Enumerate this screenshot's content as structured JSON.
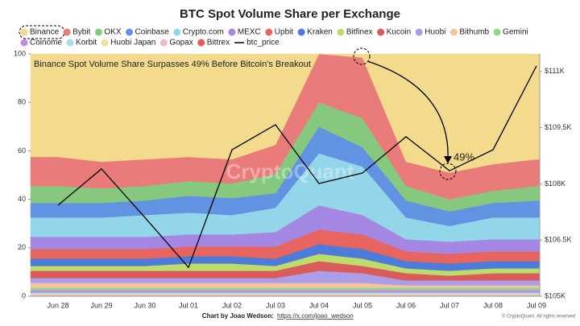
{
  "chart_data": {
    "type": "area",
    "stacked": true,
    "title": "BTC Spot Volume Share per Exchange",
    "annotation": "Binance Spot Volume Share Surpasses 49% Before Bitcoin's Breakout",
    "callout": "49%",
    "watermark": "CryptoQuant",
    "credit_prefix": "Chart by Joao Wedson:",
    "credit_link": "https://x.com/joao_wedson",
    "copyright": "© CryptoQuant. All rights reserved",
    "categories": [
      "Jun 28",
      "Jun 29",
      "Jun 30",
      "Jul 01",
      "Jul 02",
      "Jul 03",
      "Jul 04",
      "Jul 05",
      "Jul 06",
      "Jul 07",
      "Jul 08",
      "Jul 09"
    ],
    "ylim": [
      0,
      100
    ],
    "yticks": [
      0,
      20,
      40,
      60,
      80,
      100
    ],
    "y2lim": [
      105000,
      111470
    ],
    "y2ticks": [
      {
        "value": 105000,
        "label": "$105K"
      },
      {
        "value": 106500,
        "label": "$106.5K"
      },
      {
        "value": 108000,
        "label": "$108K"
      },
      {
        "value": 109500,
        "label": "$109.5K"
      },
      {
        "value": 111000,
        "label": "$111K"
      }
    ],
    "series": [
      {
        "name": "Binance",
        "color": "#f3da8c",
        "values": [
          42.5,
          44.5,
          43.5,
          42.5,
          43.5,
          37.5,
          0,
          1.5,
          44.5,
          49,
          45.5,
          43.5
        ]
      },
      {
        "name": "Bybit",
        "color": "#e97c7b",
        "values": [
          12,
          11,
          11,
          10,
          10,
          12,
          20,
          25,
          10,
          11,
          11,
          11
        ]
      },
      {
        "name": "OKX",
        "color": "#86c97e",
        "values": [
          7,
          6,
          6,
          6,
          6,
          8,
          10,
          12,
          6,
          5,
          5,
          6
        ]
      },
      {
        "name": "Coinbase",
        "color": "#6193e2",
        "values": [
          6,
          6,
          6,
          7,
          7,
          6,
          11,
          8,
          7,
          6,
          6,
          7
        ]
      },
      {
        "name": "Crypto.com",
        "color": "#93d5e9",
        "values": [
          8,
          8,
          9,
          9,
          8,
          10,
          21.5,
          20,
          9,
          6.5,
          9,
          9
        ]
      },
      {
        "name": "MEXC",
        "color": "#a487e2",
        "values": [
          5,
          5,
          5,
          5,
          5,
          6,
          10,
          8,
          5,
          5,
          5,
          5
        ]
      },
      {
        "name": "Upbit",
        "color": "#e8645f",
        "values": [
          4,
          4,
          4,
          4,
          4,
          5,
          6,
          6,
          4,
          4,
          4,
          4
        ]
      },
      {
        "name": "Kraken",
        "color": "#4d7bd9",
        "values": [
          3,
          3,
          3,
          3,
          3,
          3,
          4,
          4,
          3,
          3,
          3,
          3
        ]
      },
      {
        "name": "Bitfinex",
        "color": "#bcdd6c",
        "values": [
          2,
          2,
          2,
          3,
          3,
          2,
          3,
          3,
          2,
          2,
          2,
          2
        ]
      },
      {
        "name": "Kucoin",
        "color": "#d95c5a",
        "values": [
          3,
          3,
          3,
          3,
          3,
          3,
          4,
          3,
          3,
          2,
          3,
          3
        ]
      },
      {
        "name": "Huobi",
        "color": "#ab9de7",
        "values": [
          2,
          2,
          2,
          2,
          2,
          2,
          5,
          4,
          2,
          2,
          2,
          2
        ]
      },
      {
        "name": "Bithumb",
        "color": "#f2c59c",
        "values": [
          2,
          2,
          2,
          2,
          2,
          2,
          2,
          2,
          1,
          1,
          1,
          1
        ]
      },
      {
        "name": "Gemini",
        "color": "#92d68c",
        "values": [
          1,
          1,
          1,
          1,
          1,
          1,
          1,
          1,
          1,
          1,
          1,
          1
        ]
      },
      {
        "name": "Coinome",
        "color": "#c28be7",
        "values": [
          1,
          1,
          1,
          1,
          1,
          1,
          1,
          1,
          1,
          1,
          1,
          1
        ]
      },
      {
        "name": "Korbit",
        "color": "#a2dfe9",
        "values": [
          0.5,
          0.5,
          0.5,
          0.5,
          0.5,
          0.5,
          0.5,
          0.5,
          0.5,
          0.5,
          0.5,
          0.5
        ]
      },
      {
        "name": "Huobi Japan",
        "color": "#f2de9e",
        "values": [
          0.5,
          0.5,
          0.5,
          0.5,
          0.5,
          0.5,
          0.5,
          0.5,
          0.5,
          0.5,
          0.5,
          0.5
        ]
      },
      {
        "name": "Gopax",
        "color": "#f4b8c7",
        "values": [
          0.3,
          0.3,
          0.3,
          0.3,
          0.3,
          0.3,
          0.3,
          0.3,
          0.3,
          0.3,
          0.3,
          0.3
        ]
      },
      {
        "name": "Bittrex",
        "color": "#e65c5b",
        "values": [
          0.2,
          0.2,
          0.2,
          0.2,
          0.2,
          0.2,
          0.2,
          0.2,
          0.2,
          0.2,
          0.2,
          0.2
        ]
      },
      {
        "name": "btc_price",
        "color": "#000000",
        "axis": "y2",
        "values": [
          107430,
          108400,
          107100,
          105770,
          108910,
          109580,
          108010,
          108290,
          109260,
          108350,
          108910,
          111150
        ]
      }
    ]
  }
}
